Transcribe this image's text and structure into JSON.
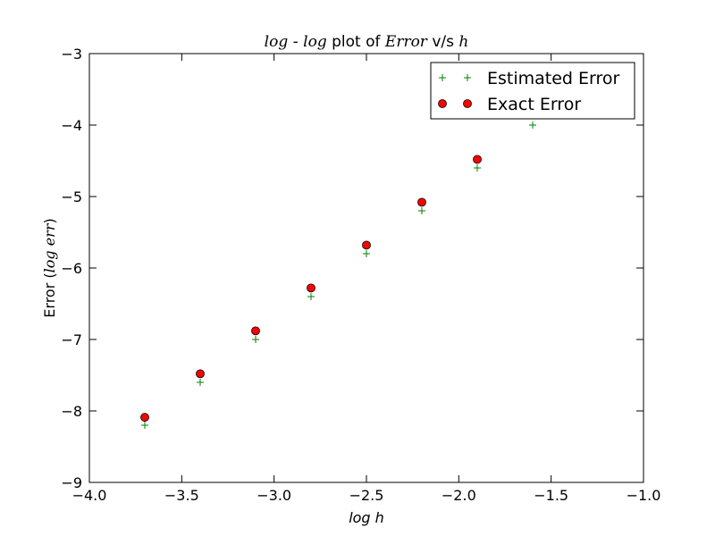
{
  "chart_data": {
    "type": "scatter",
    "title": {
      "parts": [
        {
          "text": "log",
          "math": true
        },
        {
          "text": " - ",
          "math": false
        },
        {
          "text": "log",
          "math": true
        },
        {
          "text": " plot of ",
          "math": false
        },
        {
          "text": "Error",
          "math": true
        },
        {
          "text": " v/s ",
          "math": false
        },
        {
          "text": "h",
          "math": true
        }
      ]
    },
    "xlabel": "log h",
    "ylabel": {
      "prefix": "Error (",
      "math": "log err",
      "suffix": ")"
    },
    "xlim": [
      -4.0,
      -1.0
    ],
    "ylim": [
      -9,
      -3
    ],
    "xticks": [
      -4.0,
      -3.5,
      -3.0,
      -2.5,
      -2.0,
      -1.5,
      -1.0
    ],
    "xtick_labels": [
      "−4.0",
      "−3.5",
      "−3.0",
      "−2.5",
      "−2.0",
      "−1.5",
      "−1.0"
    ],
    "yticks": [
      -9,
      -8,
      -7,
      -6,
      -5,
      -4,
      -3
    ],
    "ytick_labels": [
      "−9",
      "−8",
      "−7",
      "−6",
      "−5",
      "−4",
      "−3"
    ],
    "grid": false,
    "legend_position": "top-right",
    "series": [
      {
        "name": "Estimated Error",
        "marker": "plus",
        "color": "#008000",
        "x": [
          -3.7,
          -3.4,
          -3.1,
          -2.8,
          -2.5,
          -2.2,
          -1.9,
          -1.6
        ],
        "y": [
          -8.2,
          -7.6,
          -7.0,
          -6.4,
          -5.8,
          -5.2,
          -4.6,
          -4.0
        ]
      },
      {
        "name": "Exact Error",
        "marker": "circle",
        "color": "#ff0000",
        "x": [
          -3.7,
          -3.4,
          -3.1,
          -2.8,
          -2.5,
          -2.2,
          -1.9
        ],
        "y": [
          -8.09,
          -7.48,
          -6.88,
          -6.28,
          -5.68,
          -5.08,
          -4.48
        ]
      }
    ]
  }
}
